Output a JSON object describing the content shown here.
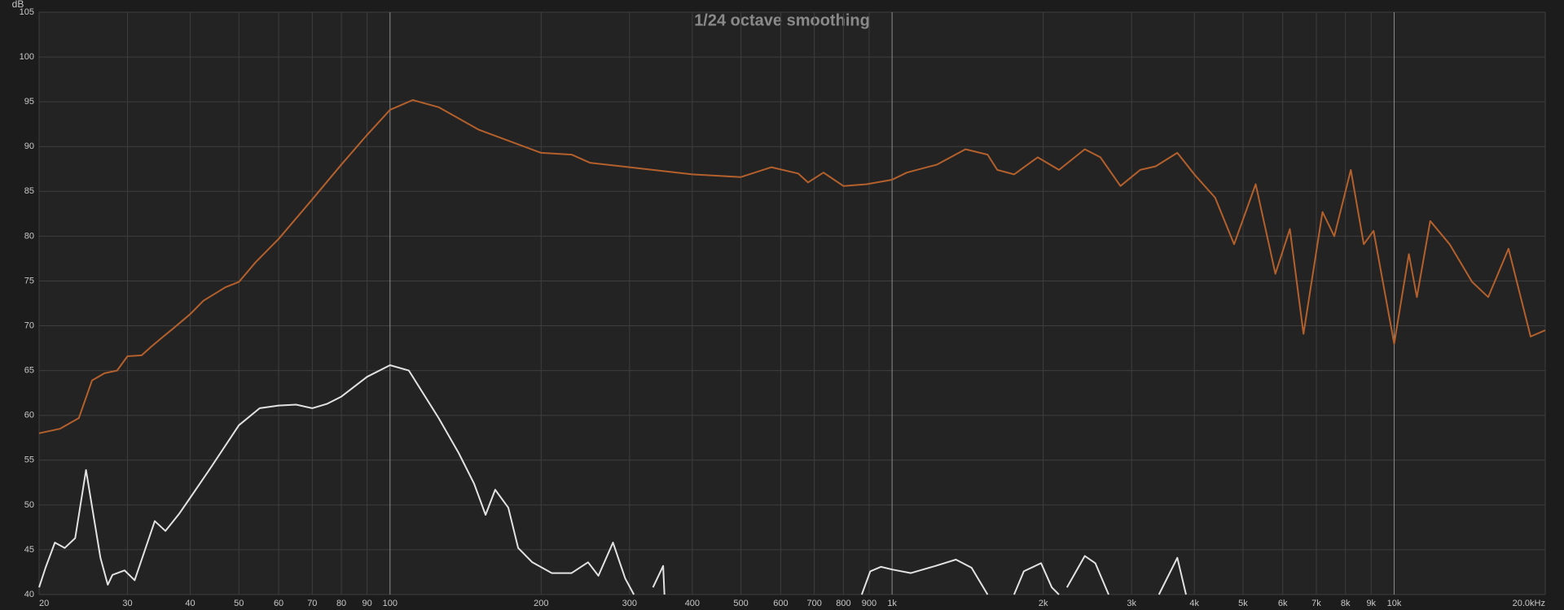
{
  "chart_data": {
    "type": "line",
    "title": "1/24 octave smoothing",
    "y_label": "dB",
    "log_x": true,
    "grid": true,
    "xlim": [
      20,
      20000
    ],
    "ylim": [
      40,
      105
    ],
    "yticks": [
      40,
      45,
      50,
      55,
      60,
      65,
      70,
      75,
      80,
      85,
      90,
      95,
      100,
      105
    ],
    "xticks": [
      20,
      30,
      40,
      50,
      60,
      70,
      80,
      90,
      100,
      200,
      300,
      400,
      500,
      600,
      700,
      800,
      900,
      {
        "value": 1000,
        "label": "1k"
      },
      {
        "value": 2000,
        "label": "2k"
      },
      {
        "value": 3000,
        "label": "3k"
      },
      {
        "value": 4000,
        "label": "4k"
      },
      {
        "value": 5000,
        "label": "5k"
      },
      {
        "value": 6000,
        "label": "6k"
      },
      {
        "value": 7000,
        "label": "7k"
      },
      {
        "value": 8000,
        "label": "8k"
      },
      {
        "value": 9000,
        "label": "9k"
      },
      {
        "value": 10000,
        "label": "10k"
      },
      {
        "value": 20000,
        "label": "20.0kHz"
      }
    ],
    "series": [
      {
        "color": "#b4602c",
        "x": [
          20,
          22,
          24,
          25.5,
          27,
          28.6,
          30,
          32,
          33.5,
          35,
          37,
          40,
          42.5,
          47,
          50,
          54,
          60,
          70,
          80,
          90,
          100,
          111,
          125,
          150,
          200,
          230,
          250,
          300,
          400,
          500,
          575,
          650,
          680,
          730,
          800,
          890,
          1000,
          1070,
          1230,
          1400,
          1550,
          1620,
          1750,
          1950,
          2150,
          2420,
          2600,
          2850,
          3120,
          3350,
          3700,
          4000,
          4400,
          4800,
          5300,
          5800,
          6200,
          6600,
          7200,
          7600,
          8200,
          8700,
          9100,
          10000,
          10700,
          11100,
          11800,
          12900,
          14300,
          15400,
          16900,
          18700,
          20000
        ],
        "values": [
          58,
          58.5,
          59.7,
          63.9,
          64.7,
          65,
          66.6,
          66.7,
          67.7,
          68.6,
          69.7,
          71.3,
          72.8,
          74.3,
          74.9,
          77.1,
          79.7,
          84.1,
          88,
          91.3,
          94.1,
          95.2,
          94.4,
          91.9,
          89.3,
          89.1,
          88.2,
          87.7,
          86.9,
          86.6,
          87.7,
          87,
          86,
          87.1,
          85.6,
          85.8,
          86.3,
          87.1,
          88,
          89.7,
          89.1,
          87.4,
          86.9,
          88.8,
          87.4,
          89.7,
          88.8,
          85.6,
          87.4,
          87.8,
          89.3,
          86.9,
          84.3,
          79.1,
          85.8,
          75.8,
          80.8,
          69.1,
          82.7,
          80,
          87.4,
          79.1,
          80.6,
          68,
          78,
          73.2,
          81.7,
          79.1,
          74.9,
          73.2,
          78.6,
          68.8,
          69.5
        ]
      },
      {
        "color": "#e2e2e2",
        "x": [
          20,
          20.6,
          21.5,
          22.5,
          23.6,
          24.8,
          26.5,
          27.4,
          28,
          29.6,
          31,
          34,
          35.7,
          38,
          40,
          44,
          50,
          55,
          60,
          65,
          70,
          75,
          80,
          90,
          100,
          109,
          125,
          137,
          147,
          155,
          162,
          172,
          180,
          192,
          210,
          230,
          248,
          260,
          278,
          294,
          306,
          320,
          334,
          350,
          352,
          500,
          576,
          700,
          870,
          905,
          950,
          1000,
          1090,
          1220,
          1340,
          1440,
          1550,
          1650,
          1750,
          1830,
          1980,
          2080,
          2150,
          2200,
          2230,
          2420,
          2540,
          2700,
          3000,
          3400,
          3700,
          3850
        ],
        "values": [
          40.8,
          43,
          45.8,
          45.2,
          46.3,
          53.9,
          44.1,
          41.1,
          42.2,
          42.7,
          41.6,
          48.2,
          47.1,
          49,
          50.8,
          54.2,
          58.9,
          60.8,
          61.1,
          61.2,
          60.8,
          61.3,
          62.1,
          64.3,
          65.6,
          65,
          59.7,
          55.8,
          52.4,
          48.9,
          51.7,
          49.7,
          45.2,
          43.6,
          42.4,
          42.4,
          43.6,
          42.1,
          45.8,
          41.8,
          40,
          null,
          40.8,
          43.2,
          40,
          null,
          40.3,
          null,
          40,
          42.6,
          43.1,
          42.8,
          42.4,
          43.2,
          43.9,
          43,
          40,
          null,
          40,
          42.6,
          43.5,
          40.8,
          40,
          null,
          40.8,
          44.3,
          43.5,
          40,
          null,
          40,
          44.1,
          40
        ]
      }
    ]
  }
}
